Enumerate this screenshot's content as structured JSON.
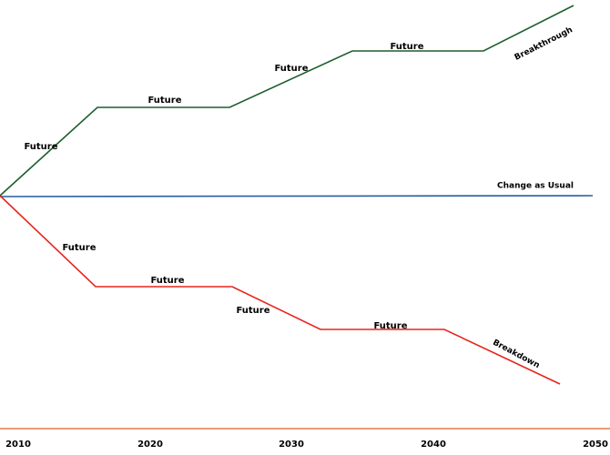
{
  "axis": {
    "labels": [
      "2010",
      "2020",
      "2030",
      "2040",
      "2050"
    ]
  },
  "scenarios": [
    {
      "name": "Breakthrough",
      "segments": [
        "Future",
        "Future",
        "Future",
        "Future"
      ]
    },
    {
      "name": "Change as Usual"
    },
    {
      "name": "Breakdown",
      "segments": [
        "Future",
        "Future",
        "Future",
        "Future"
      ]
    }
  ]
}
